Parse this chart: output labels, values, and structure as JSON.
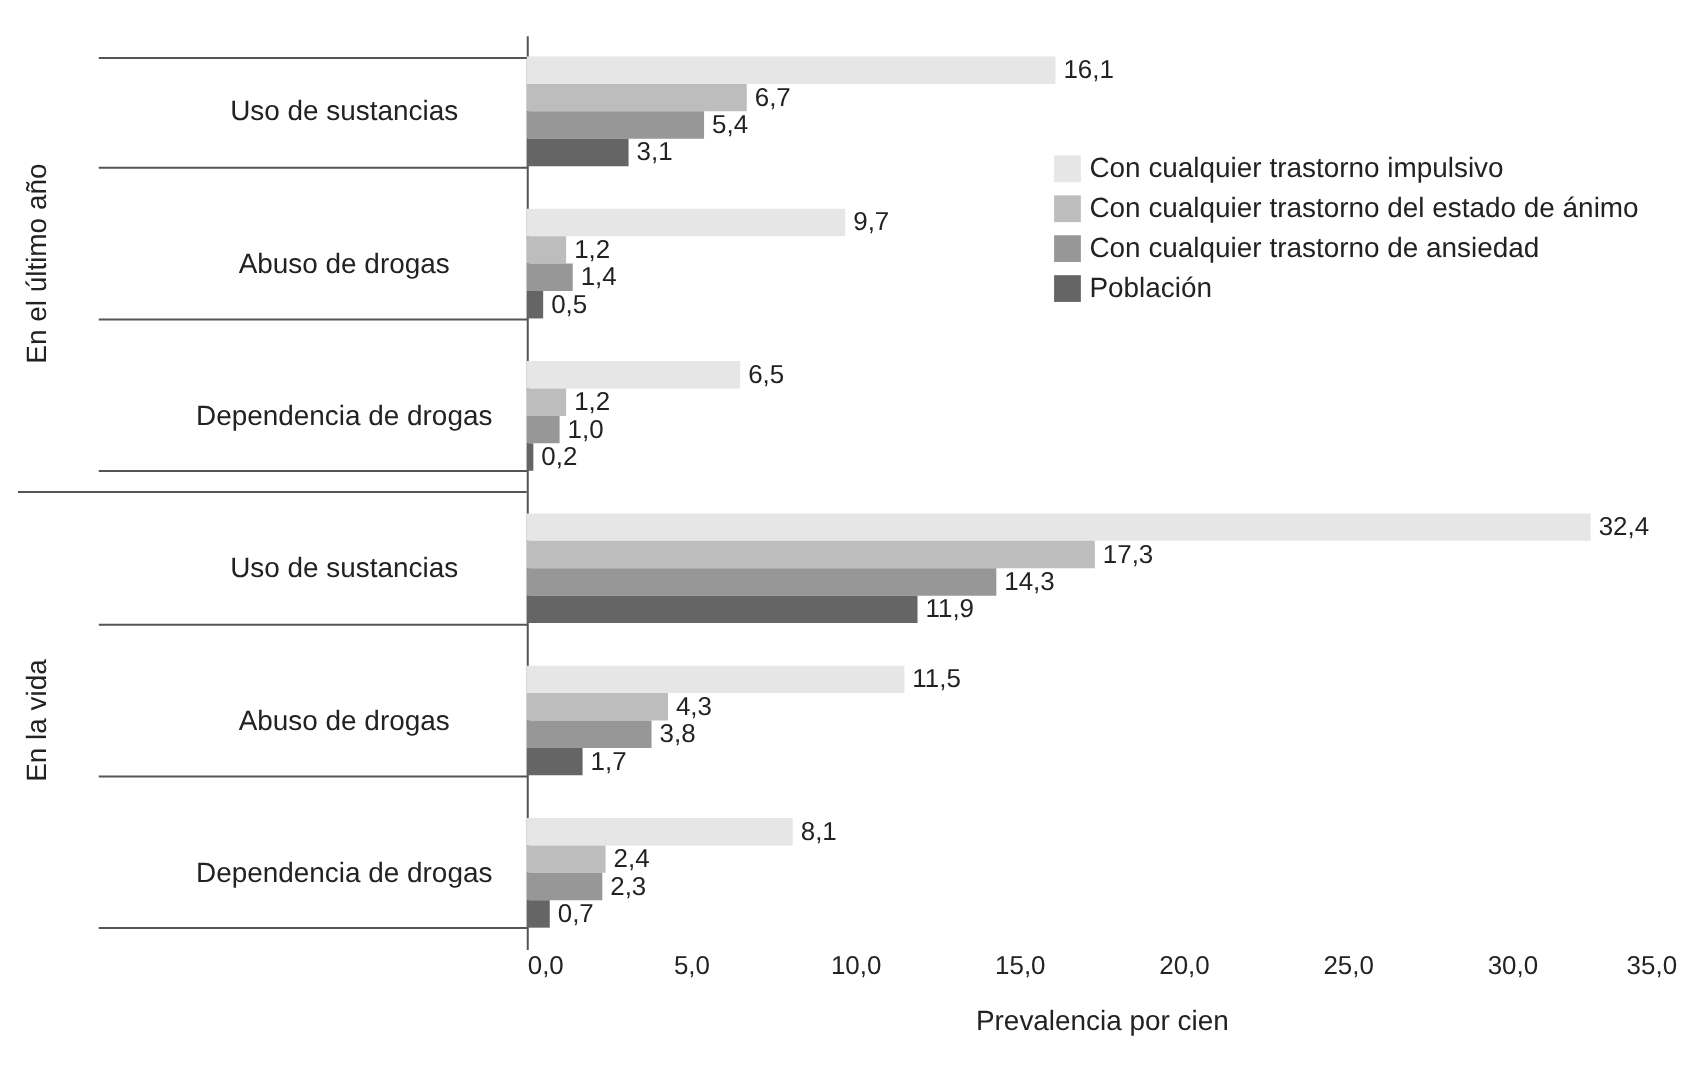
{
  "chart_data": {
    "type": "bar",
    "orientation": "horizontal",
    "xlabel": "Prevalencia por cien",
    "categories": [
      "Uso de sustancias",
      "Abuso de drogas",
      "Dependencia de drogas",
      "Uso de sustancias",
      "Abuso de drogas",
      "Dependencia de drogas"
    ],
    "series": [
      {
        "name": "Con cualquier trastorno impulsivo",
        "color": "#e6e6e6",
        "values": [
          16.1,
          9.7,
          6.5,
          32.4,
          11.5,
          8.1
        ],
        "value_labels": [
          "16,1",
          "9,7",
          "6,5",
          "32,4",
          "11,5",
          "8,1"
        ]
      },
      {
        "name": "Con cualquier trastorno del estado de ánimo",
        "color": "#bdbdbd",
        "values": [
          6.7,
          1.2,
          1.2,
          17.3,
          4.3,
          2.4
        ],
        "value_labels": [
          "6,7",
          "1,2",
          "1,2",
          "17,3",
          "4,3",
          "2,4"
        ]
      },
      {
        "name": "Con cualquier trastorno de ansiedad",
        "color": "#979797",
        "values": [
          5.4,
          1.4,
          1.0,
          14.3,
          3.8,
          2.3
        ],
        "value_labels": [
          "5,4",
          "1,4",
          "1,0",
          "14,3",
          "3,8",
          "2,3"
        ]
      },
      {
        "name": "Población",
        "color": "#656565",
        "values": [
          3.1,
          0.5,
          0.2,
          11.9,
          1.7,
          0.7
        ],
        "value_labels": [
          "3,1",
          "0,5",
          "0,2",
          "11,9",
          "1,7",
          "0,7"
        ]
      }
    ],
    "annotations": [
      "En el último año",
      "En la vida"
    ],
    "xlim": [
      0,
      35
    ],
    "xticks": [
      {
        "value": 0,
        "label": "0,0"
      },
      {
        "value": 5,
        "label": "5,0"
      },
      {
        "value": 10,
        "label": "10,0"
      },
      {
        "value": 15,
        "label": "15,0"
      },
      {
        "value": 20,
        "label": "20,0"
      },
      {
        "value": 25,
        "label": "25,0"
      },
      {
        "value": 30,
        "label": "30,0"
      },
      {
        "value": 35,
        "label": "35,0"
      }
    ],
    "legend": "top right",
    "grid": false
  }
}
